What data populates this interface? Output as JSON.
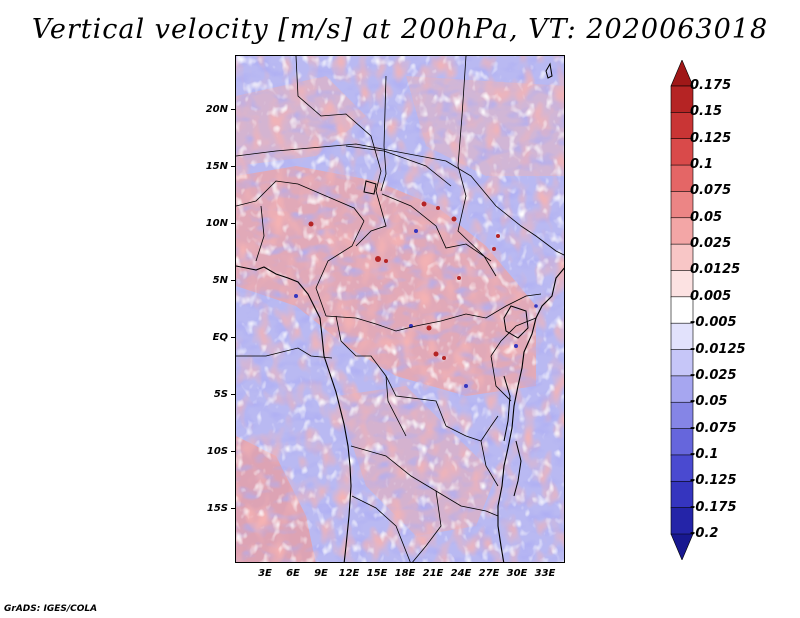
{
  "title": "Vertical velocity [m/s] at 200hPa, VT: 2020063018",
  "credit": "GrADS: IGES/COLA",
  "map": {
    "lat_labels": [
      "20N",
      "15N",
      "10N",
      "5N",
      "EQ",
      "5S",
      "10S",
      "15S"
    ],
    "lon_labels": [
      "3E",
      "6E",
      "9E",
      "12E",
      "15E",
      "18E",
      "21E",
      "24E",
      "27E",
      "30E",
      "33E"
    ]
  },
  "colorbar": {
    "labels": [
      "0.175",
      "0.15",
      "0.125",
      "0.1",
      "0.075",
      "0.05",
      "0.025",
      "0.0125",
      "0.005",
      "-0.005",
      "-0.0125",
      "-0.025",
      "-0.05",
      "-0.075",
      "-0.1",
      "-0.125",
      "-0.175",
      "-0.2"
    ],
    "colors": [
      "#a01818",
      "#b52424",
      "#c93535",
      "#d94a4a",
      "#e46666",
      "#ec8585",
      "#f3a6a6",
      "#f8c6c6",
      "#fce2e2",
      "#ffffff",
      "#e2e2fc",
      "#c6c6f8",
      "#a6a6f0",
      "#8585e6",
      "#6666dc",
      "#4a4ad0",
      "#3535bf",
      "#2424a8",
      "#181890"
    ]
  }
}
